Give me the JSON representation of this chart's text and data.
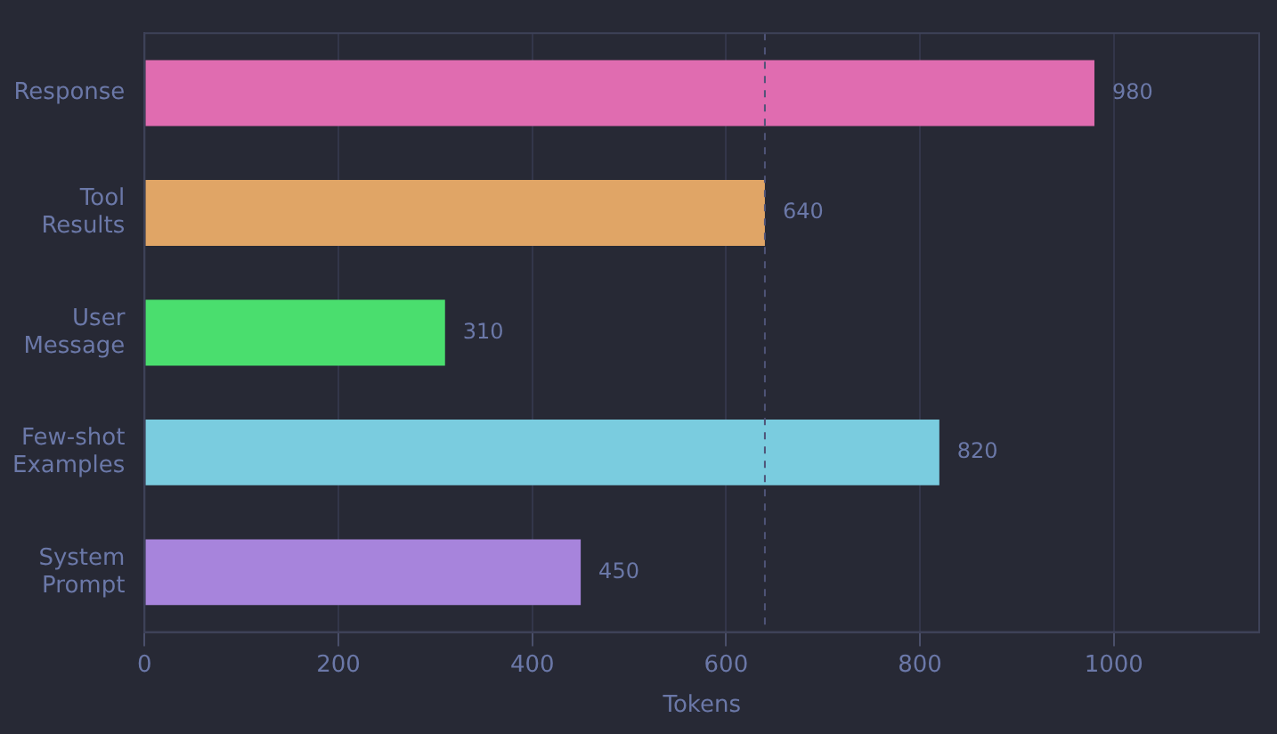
{
  "chart_data": {
    "type": "bar",
    "orientation": "horizontal",
    "xlabel": "Tokens",
    "categories": [
      "Response",
      "Tool Results",
      "User Message",
      "Few-shot Examples",
      "System Prompt"
    ],
    "values": [
      980,
      640,
      310,
      820,
      450
    ],
    "colors": [
      "#e06cb0",
      "#e0a566",
      "#4ade6e",
      "#7accdf",
      "#a784dc"
    ],
    "xlim": [
      0,
      1150
    ],
    "xticks": [
      0,
      200,
      400,
      600,
      800,
      1000
    ],
    "ref_lines": [
      {
        "axis": "x",
        "value": 640,
        "color": "#4f5478",
        "line_style": "dashed"
      }
    ],
    "grid": "x",
    "data_labels": true,
    "legend": false
  }
}
